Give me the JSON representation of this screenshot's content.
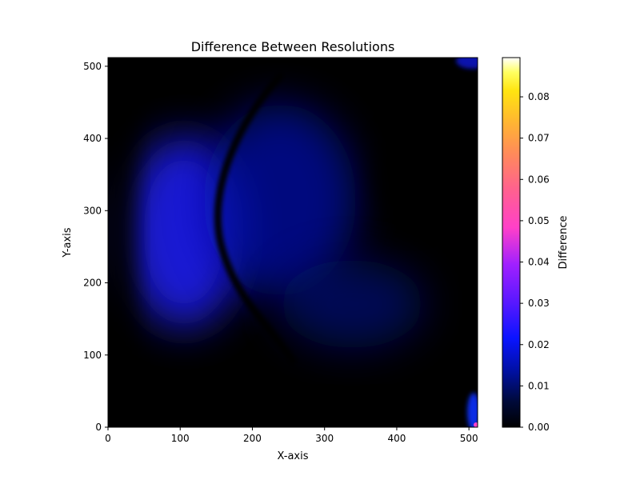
{
  "chart_data": {
    "type": "heatmap",
    "title": "Difference Between Resolutions",
    "xlabel": "X-axis",
    "ylabel": "Y-axis",
    "xlim": [
      0,
      512
    ],
    "ylim": [
      0,
      512
    ],
    "xticks": [
      0,
      100,
      200,
      300,
      400,
      500
    ],
    "yticks": [
      0,
      100,
      200,
      300,
      400,
      500
    ],
    "colorbar": {
      "label": "Difference",
      "colormap": "gnuplot2",
      "range": [
        0,
        0.0895
      ],
      "ticks": [
        "0.00",
        "0.01",
        "0.02",
        "0.03",
        "0.04",
        "0.05",
        "0.06",
        "0.07",
        "0.08"
      ]
    },
    "features": [
      {
        "name": "left-bright-lobe",
        "center": [
          110,
          310
        ],
        "peak_value": 0.021
      },
      {
        "name": "zero-difference-ridge",
        "path": [
          [
            250,
            90
          ],
          [
            200,
            160
          ],
          [
            160,
            230
          ],
          [
            150,
            300
          ],
          [
            170,
            370
          ],
          [
            230,
            440
          ],
          [
            300,
            490
          ]
        ]
      },
      {
        "name": "upper-right-dark-swirl",
        "center": [
          420,
          270
        ],
        "value": 0.0
      },
      {
        "name": "bottom-right-corner-spike",
        "location": [
          510,
          2
        ],
        "peak_value": 0.06
      }
    ],
    "grid": false
  }
}
